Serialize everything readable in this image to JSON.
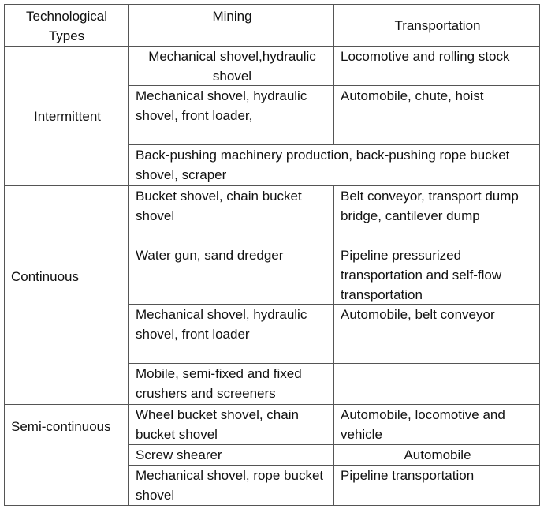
{
  "header": {
    "types": "Technological Types",
    "mining": "Mining",
    "transportation": "Transportation"
  },
  "groups": [
    {
      "type": "Intermittent",
      "rows": [
        {
          "mining": "Mechanical shovel,hydraulic shovel",
          "transportation": "Locomotive and rolling stock"
        },
        {
          "mining": "Mechanical shovel, hydraulic shovel, front loader,",
          "transportation": "Automobile, chute, hoist"
        },
        {
          "mining": "Back-pushing machinery production, back-pushing rope bucket shovel, scraper"
        }
      ]
    },
    {
      "type": "Continuous",
      "rows": [
        {
          "mining": "Bucket shovel, chain bucket shovel",
          "transportation": "Belt conveyor, transport dump bridge, cantilever dump"
        },
        {
          "mining": "Water gun, sand dredger",
          "transportation": "Pipeline pressurized transportation and self-flow transportation"
        },
        {
          "mining": "Mechanical shovel, hydraulic shovel, front loader",
          "transportation": "Automobile, belt conveyor"
        },
        {
          "mining": "Mobile, semi-fixed and fixed crushers and screeners",
          "transportation": ""
        }
      ]
    },
    {
      "type": "Semi-continuous",
      "rows": [
        {
          "mining": "Wheel bucket shovel, chain bucket shovel",
          "transportation": "Automobile, locomotive and vehicle"
        },
        {
          "mining": "Screw shearer",
          "transportation": "Automobile"
        },
        {
          "mining": "Mechanical shovel, rope bucket shovel",
          "transportation": "Pipeline transportation"
        }
      ]
    }
  ]
}
